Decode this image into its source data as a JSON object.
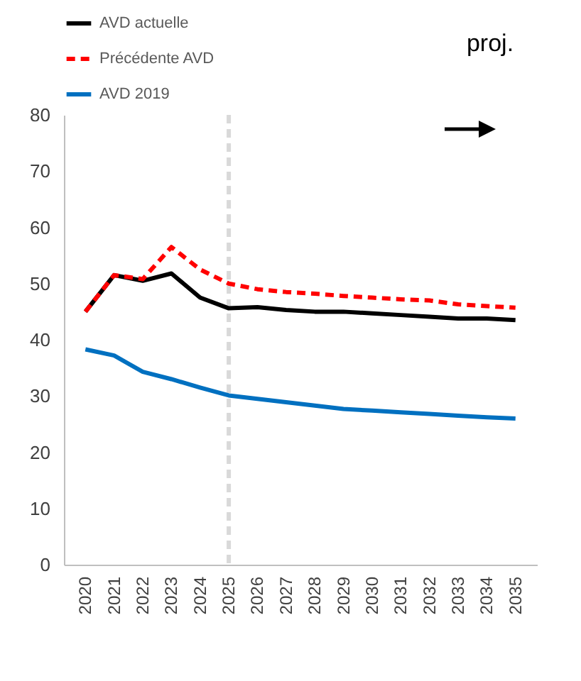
{
  "chart_data": {
    "type": "line",
    "categories": [
      "2020",
      "2021",
      "2022",
      "2023",
      "2024",
      "2025",
      "2026",
      "2027",
      "2028",
      "2029",
      "2030",
      "2031",
      "2032",
      "2033",
      "2034",
      "2035"
    ],
    "series": [
      {
        "name": "AVD actuelle",
        "color": "#000000",
        "line_style": "solid",
        "values": [
          45,
          51.5,
          50.5,
          51.8,
          47.5,
          45.6,
          45.8,
          45.3,
          45.0,
          45.0,
          44.7,
          44.4,
          44.1,
          43.8,
          43.8,
          43.5
        ]
      },
      {
        "name": "Précédente AVD",
        "color": "#ff0000",
        "line_style": "dashed",
        "values": [
          45,
          51.5,
          50.8,
          56.5,
          52.5,
          50.0,
          49.0,
          48.5,
          48.2,
          47.8,
          47.5,
          47.2,
          47.0,
          46.3,
          46.0,
          45.7
        ]
      },
      {
        "name": "AVD 2019",
        "color": "#0070c0",
        "line_style": "solid",
        "values": [
          38.3,
          37.2,
          34.3,
          33.0,
          31.5,
          30.1,
          29.5,
          28.9,
          28.3,
          27.7,
          27.4,
          27.1,
          26.8,
          26.5,
          26.2,
          26.0
        ]
      }
    ],
    "ylim": [
      0,
      80
    ],
    "yticks": [
      0,
      10,
      20,
      30,
      40,
      50,
      60,
      70,
      80
    ],
    "grid": false,
    "legend": "top",
    "marker": "none",
    "ref_lines": [
      {
        "axis": "x",
        "value": "2025",
        "color": "#d9d9d9",
        "line_style": "dashed"
      }
    ],
    "annotations": [
      "proj."
    ]
  }
}
